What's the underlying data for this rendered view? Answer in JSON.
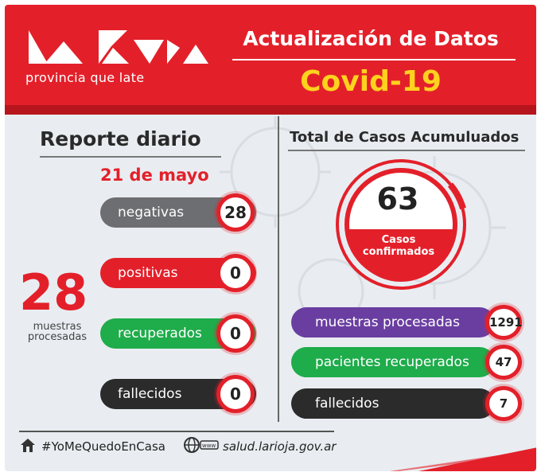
{
  "header": {
    "brand_tagline": "provincia que late",
    "title": "Actualización de Datos",
    "subtitle": "Covid-19"
  },
  "left": {
    "title": "Reporte diario",
    "date": "21 de mayo",
    "items": [
      {
        "label": "negativas",
        "value": "28",
        "color": "#6d6e71"
      },
      {
        "label": "positivas",
        "value": "0",
        "color": "#e3202a"
      },
      {
        "label": "recuperados",
        "value": "0",
        "color": "#1fac4b"
      },
      {
        "label": "fallecidos",
        "value": "0",
        "color": "#2b2b2b"
      }
    ],
    "big_number": "28",
    "big_caption_1": "muestras",
    "big_caption_2": "procesadas"
  },
  "right": {
    "title": "Total de Casos Acumuluados",
    "confirmed_value": "63",
    "confirmed_label_1": "Casos",
    "confirmed_label_2": "confirmados",
    "items": [
      {
        "label": "muestras procesadas",
        "value": "1291",
        "color": "#6a3ea1"
      },
      {
        "label": "pacientes recuperados",
        "value": "47",
        "color": "#1fac4b"
      },
      {
        "label": "fallecidos",
        "value": "7",
        "color": "#2b2b2b"
      }
    ]
  },
  "footer": {
    "hashtag": "#YoMeQuedoEnCasa",
    "website": "salud.larioja.gov.ar"
  },
  "colors": {
    "brand_red": "#e3202a",
    "accent_yellow": "#ffd21e"
  }
}
